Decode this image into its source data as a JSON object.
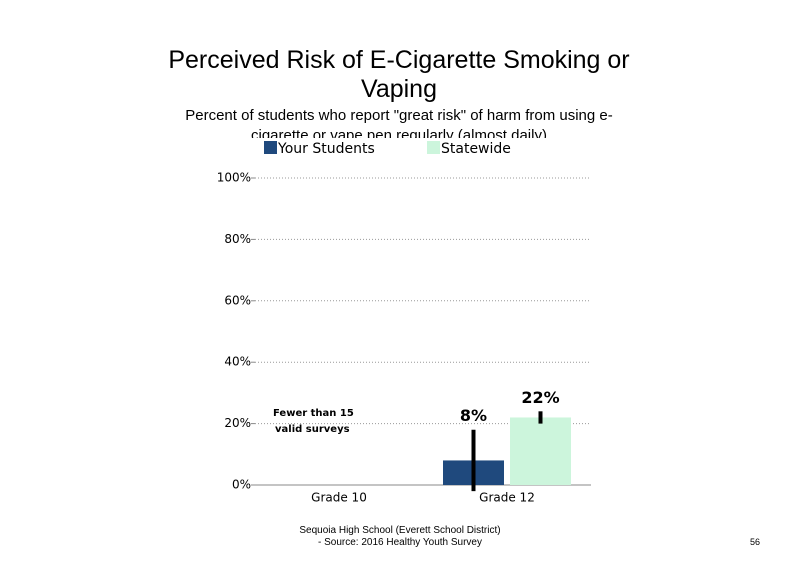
{
  "chart_data": {
    "type": "bar",
    "title": "Perceived Risk of E-Cigarette Smoking or Vaping",
    "subtitle": "Percent of students who report \"great risk\" of harm from using e-cigarette or vape pen regularly (almost daily)",
    "categories": [
      "Grade 10",
      "Grade 12"
    ],
    "series": [
      {
        "name": "Your Students",
        "color": "#1f497d",
        "values": [
          null,
          8
        ],
        "value_labels": [
          null,
          "8%"
        ],
        "errors": [
          null,
          10
        ]
      },
      {
        "name": "Statewide",
        "color": "#ccf5dc",
        "values": [
          null,
          22
        ],
        "value_labels": [
          null,
          "22%"
        ],
        "errors": [
          null,
          2
        ]
      }
    ],
    "ylim": [
      0,
      100
    ],
    "yticks": [
      {
        "value": 0,
        "label": "0%"
      },
      {
        "value": 20,
        "label": "20%"
      },
      {
        "value": 40,
        "label": "40%"
      },
      {
        "value": 60,
        "label": "60%"
      },
      {
        "value": 80,
        "label": "80%"
      },
      {
        "value": 100,
        "label": "100%"
      }
    ],
    "grid": true,
    "annotation": [
      "Fewer than 15",
      "valid surveys"
    ]
  },
  "footer": [
    "Sequoia High School (Everett School District)",
    "- Source: 2016 Healthy Youth Survey"
  ],
  "page_number": "56"
}
